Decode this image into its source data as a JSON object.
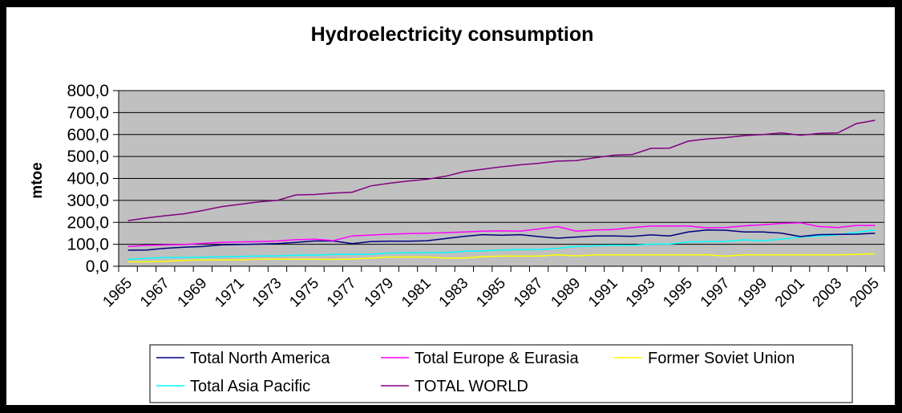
{
  "chart_data": {
    "type": "line",
    "title": "Hydroelectricity consumption",
    "xlabel": "",
    "ylabel": "mtoe",
    "ylim": [
      0,
      800
    ],
    "ytick_step": 100,
    "ytick_labels": [
      "0,0",
      "100,0",
      "200,0",
      "300,0",
      "400,0",
      "500,0",
      "600,0",
      "700,0",
      "800,0"
    ],
    "grid": true,
    "legend_position": "bottom",
    "x": [
      1965,
      1966,
      1967,
      1968,
      1969,
      1970,
      1971,
      1972,
      1973,
      1974,
      1975,
      1976,
      1977,
      1978,
      1979,
      1980,
      1981,
      1982,
      1983,
      1984,
      1985,
      1986,
      1987,
      1988,
      1989,
      1990,
      1991,
      1992,
      1993,
      1994,
      1995,
      1996,
      1997,
      1998,
      1999,
      2000,
      2001,
      2002,
      2003,
      2004,
      2005
    ],
    "xtick_labels": [
      "1965",
      "1967",
      "1969",
      "1971",
      "1973",
      "1975",
      "1977",
      "1979",
      "1981",
      "1983",
      "1985",
      "1987",
      "1989",
      "1991",
      "1993",
      "1995",
      "1997",
      "1999",
      "2001",
      "2003",
      "2005"
    ],
    "series": [
      {
        "name": "Total North America",
        "color": "#000080",
        "values": [
          73,
          74,
          82,
          87,
          90,
          97,
          99,
          101,
          103,
          109,
          115,
          115,
          103,
          112,
          114,
          114,
          116,
          126,
          136,
          144,
          141,
          144,
          135,
          128,
          133,
          138,
          138,
          136,
          143,
          138,
          156,
          165,
          164,
          156,
          156,
          151,
          135,
          144,
          145,
          146,
          150
        ]
      },
      {
        "name": "Total Europe & Eurasia",
        "color": "#FF00FF",
        "values": [
          90,
          95,
          97,
          99,
          104,
          109,
          111,
          112,
          115,
          121,
          123,
          117,
          138,
          142,
          146,
          149,
          150,
          153,
          156,
          160,
          161,
          160,
          170,
          181,
          160,
          165,
          167,
          176,
          183,
          183,
          183,
          175,
          176,
          184,
          189,
          195,
          198,
          181,
          176,
          186,
          186
        ]
      },
      {
        "name": "Former Soviet Union",
        "color": "#FFFF00",
        "values": [
          20,
          20,
          22,
          27,
          29,
          29,
          29,
          32,
          32,
          32,
          32,
          31,
          33,
          37,
          42,
          42,
          42,
          37,
          37,
          44,
          46,
          46,
          46,
          52,
          47,
          52,
          52,
          52,
          52,
          52,
          52,
          52,
          46,
          52,
          52,
          52,
          52,
          52,
          52,
          54,
          57
        ]
      },
      {
        "name": "Total Asia Pacific",
        "color": "#00FFFF",
        "values": [
          31,
          36,
          40,
          40,
          41,
          43,
          45,
          46,
          47,
          50,
          51,
          54,
          54,
          55,
          60,
          61,
          62,
          62,
          68,
          70,
          74,
          76,
          76,
          82,
          90,
          93,
          96,
          95,
          101,
          101,
          111,
          112,
          113,
          120,
          116,
          124,
          133,
          138,
          143,
          154,
          165
        ]
      },
      {
        "name": "TOTAL WORLD",
        "color": "#800080",
        "values": [
          208,
          220,
          230,
          239,
          254,
          271,
          282,
          293,
          300,
          325,
          327,
          333,
          337,
          366,
          378,
          388,
          396,
          410,
          431,
          442,
          453,
          462,
          469,
          479,
          481,
          494,
          506,
          509,
          537,
          538,
          570,
          580,
          586,
          595,
          600,
          607,
          597,
          605,
          607,
          650,
          665
        ]
      }
    ]
  }
}
